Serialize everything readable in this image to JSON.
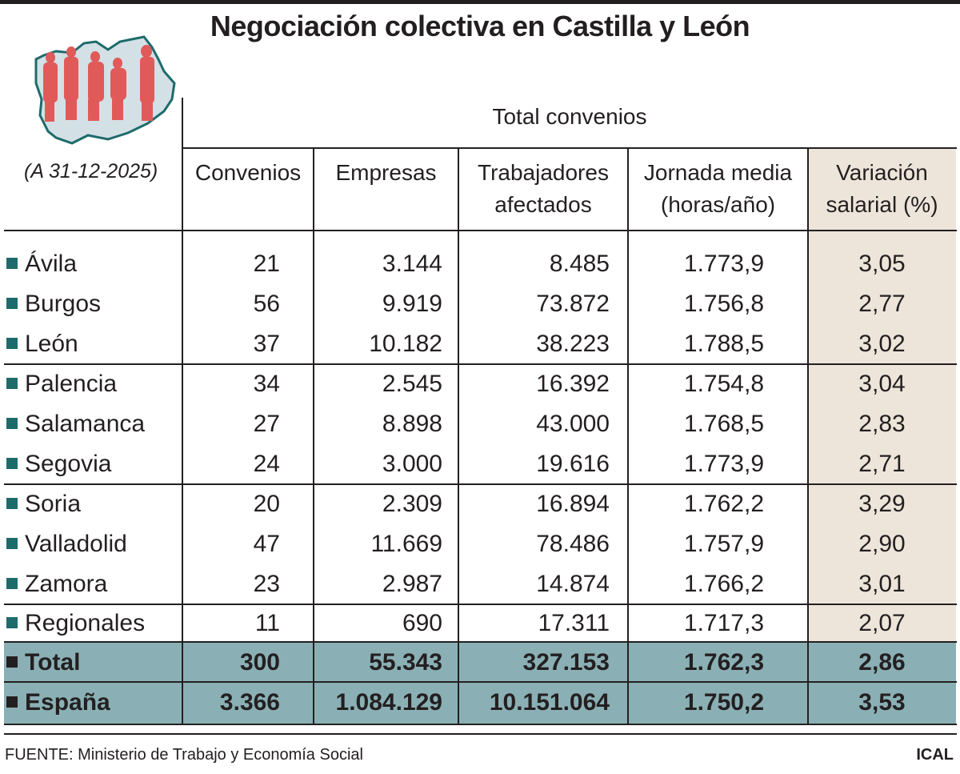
{
  "title": "Negociación colectiva en Castilla y León",
  "date_note": "(A 31-12-2025)",
  "group_header": "Total convenios",
  "columns": [
    "Convenios",
    "Empresas",
    "Trabajadores afectados",
    "Jornada media (horas/año)",
    "Variación salarial (%)"
  ],
  "column_lines": [
    [
      "Convenios"
    ],
    [
      "Empresas"
    ],
    [
      "Trabajadores",
      "afectados"
    ],
    [
      "Jornada media",
      "(horas/año)"
    ],
    [
      "Variación",
      "salarial (%)"
    ]
  ],
  "rows": [
    {
      "label": "Ávila",
      "values": [
        "21",
        "3.144",
        "8.485",
        "1.773,9",
        "3,05"
      ]
    },
    {
      "label": "Burgos",
      "values": [
        "56",
        "9.919",
        "73.872",
        "1.756,8",
        "2,77"
      ]
    },
    {
      "label": "León",
      "values": [
        "37",
        "10.182",
        "38.223",
        "1.788,5",
        "3,02"
      ]
    },
    {
      "label": "Palencia",
      "values": [
        "34",
        "2.545",
        "16.392",
        "1.754,8",
        "3,04"
      ]
    },
    {
      "label": "Salamanca",
      "values": [
        "27",
        "8.898",
        "43.000",
        "1.768,5",
        "2,83"
      ]
    },
    {
      "label": "Segovia",
      "values": [
        "24",
        "3.000",
        "19.616",
        "1.773,9",
        "2,71"
      ]
    },
    {
      "label": "Soria",
      "values": [
        "20",
        "2.309",
        "16.894",
        "1.762,2",
        "3,29"
      ]
    },
    {
      "label": "Valladolid",
      "values": [
        "47",
        "11.669",
        "78.486",
        "1.757,9",
        "2,90"
      ]
    },
    {
      "label": "Zamora",
      "values": [
        "23",
        "2.987",
        "14.874",
        "1.766,2",
        "3,01"
      ]
    },
    {
      "label": "Regionales",
      "values": [
        "11",
        "690",
        "17.311",
        "1.717,3",
        "2,07"
      ]
    },
    {
      "label": "Total",
      "values": [
        "300",
        "55.343",
        "327.153",
        "1.762,3",
        "2,86"
      ],
      "highlight": true
    },
    {
      "label": "España",
      "values": [
        "3.366",
        "1.084.129",
        "10.151.064",
        "1.750,2",
        "3,53"
      ],
      "highlight": true
    }
  ],
  "source": "FUENTE: Ministerio de Trabajo y Economía Social",
  "credit": "ICAL",
  "logo_icon": "castilla-y-leon-map-with-people-icon",
  "colors": {
    "highlight_band": "#8ab0b5",
    "bullet": "#1e6b6b",
    "variation_column": "#ede5da",
    "figures": "#e05a5a",
    "map_fill": "#d3e0e6",
    "map_outline": "#1e6b6b"
  },
  "chart_data": {
    "type": "table",
    "title": "Negociación colectiva en Castilla y León",
    "subtitle": "(A 31-12-2025)",
    "group_header": "Total convenios",
    "headers": [
      "",
      "Convenios",
      "Empresas",
      "Trabajadores afectados",
      "Jornada media (horas/año)",
      "Variación salarial (%)"
    ],
    "rows": [
      [
        "Ávila",
        21,
        3144,
        8485,
        1773.9,
        3.05
      ],
      [
        "Burgos",
        56,
        9919,
        73872,
        1756.8,
        2.77
      ],
      [
        "León",
        37,
        10182,
        38223,
        1788.5,
        3.02
      ],
      [
        "Palencia",
        34,
        2545,
        16392,
        1754.8,
        3.04
      ],
      [
        "Salamanca",
        27,
        8898,
        43000,
        1768.5,
        2.83
      ],
      [
        "Segovia",
        24,
        3000,
        19616,
        1773.9,
        2.71
      ],
      [
        "Soria",
        20,
        2309,
        16894,
        1762.2,
        3.29
      ],
      [
        "Valladolid",
        47,
        11669,
        78486,
        1757.9,
        2.9
      ],
      [
        "Zamora",
        23,
        2987,
        14874,
        1766.2,
        3.01
      ],
      [
        "Regionales",
        11,
        690,
        17311,
        1717.3,
        2.07
      ],
      [
        "Total",
        300,
        55343,
        327153,
        1762.3,
        2.86
      ],
      [
        "España",
        3366,
        1084129,
        10151064,
        1750.2,
        3.53
      ]
    ],
    "source": "FUENTE: Ministerio de Trabajo y Economía Social"
  }
}
